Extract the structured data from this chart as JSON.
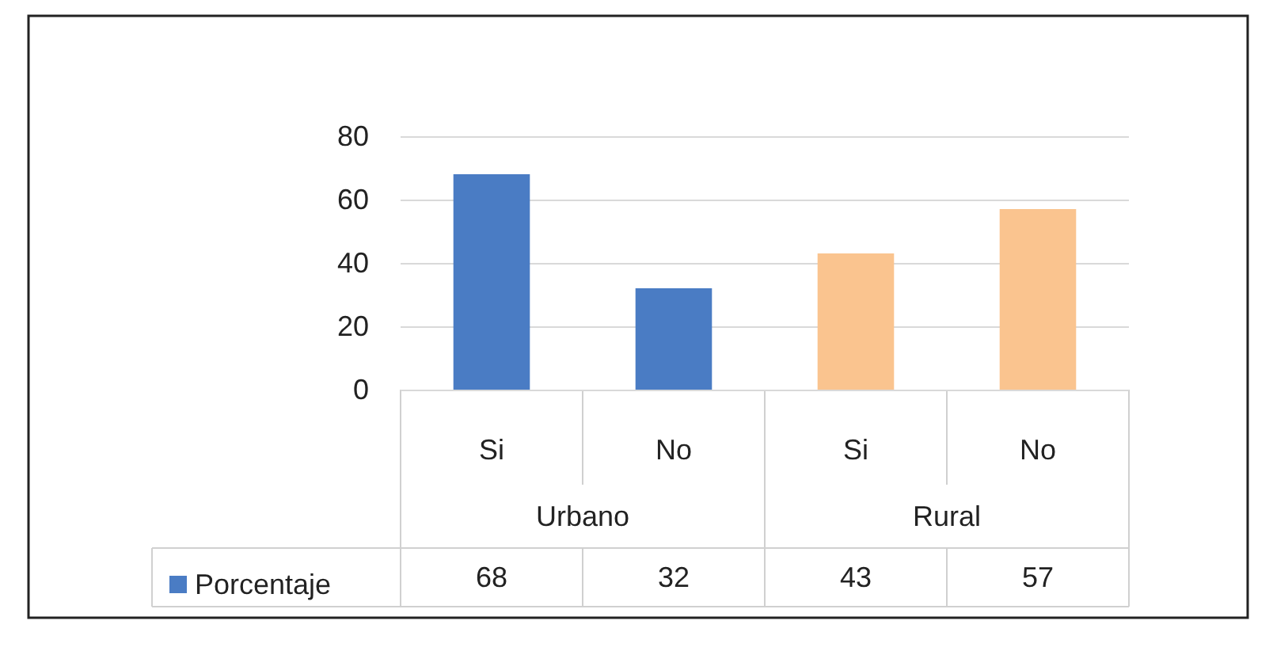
{
  "chart_data": {
    "type": "bar",
    "categories": [
      "Si",
      "No",
      "Si",
      "No"
    ],
    "series": [
      {
        "name": "Porcentaje",
        "color": "#4a7cc4",
        "colors": [
          "#4a7cc4",
          "#4a7cc4",
          "#fac48f",
          "#fac48f"
        ],
        "values": [
          68,
          32,
          43,
          57
        ]
      }
    ],
    "annotations": [
      "Urbano",
      "Rural"
    ],
    "ylim": [
      0,
      80
    ],
    "yticks": [
      0,
      20,
      40,
      60,
      80
    ],
    "grid": "y",
    "legend": "bottom left",
    "data_labels": true
  }
}
